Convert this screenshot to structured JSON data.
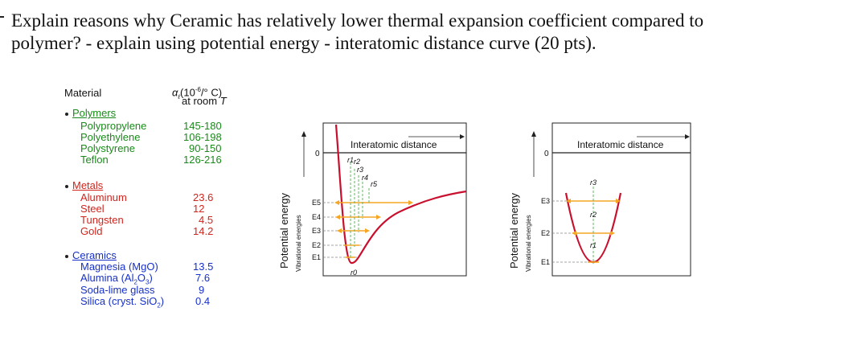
{
  "question": {
    "line1": "Explain reasons why Ceramic has relatively lower thermal expansion coefficient compared to",
    "line2": "polymer? - explain using potential energy - interatomic distance curve (20 pts)."
  },
  "table": {
    "col_material": "Material",
    "col_alpha_line1": "α  (10  /° C)",
    "col_alpha_line2": "at room T",
    "groups": [
      {
        "name": "Polymers",
        "color": "#1a8a1a",
        "items": [
          {
            "name": "Polypropylene",
            "value": "145-180"
          },
          {
            "name": "Polyethylene",
            "value": "106-198"
          },
          {
            "name": "Polystyrene",
            "value": "90-150"
          },
          {
            "name": "Teflon",
            "value": "126-216"
          }
        ]
      },
      {
        "name": "Metals",
        "color": "#d0241c",
        "items": [
          {
            "name": "Aluminum",
            "value": "23.6"
          },
          {
            "name": "Steel",
            "value": "12"
          },
          {
            "name": "Tungsten",
            "value": "4.5"
          },
          {
            "name": "Gold",
            "value": "14.2"
          }
        ]
      },
      {
        "name": "Ceramics",
        "color": "#1730c8",
        "items": [
          {
            "name": "Magnesia (MgO)",
            "value": "13.5"
          },
          {
            "name": "Alumina (Al2O3)",
            "value": "7.6"
          },
          {
            "name": "Soda-lime glass",
            "value": "9"
          },
          {
            "name": "Silica (cryst. SiO2)",
            "value": "0.4"
          }
        ]
      }
    ]
  },
  "diagram_left": {
    "y_axis": "Potential energy",
    "y_sub": "Vibrational energies",
    "x_axis": "Interatomic distance",
    "zero": "0",
    "levels": [
      "E5",
      "E4",
      "E3",
      "E2",
      "E1"
    ],
    "r_labels": [
      "r1",
      "r2",
      "r3",
      "r4",
      "r5"
    ],
    "r0": "r0"
  },
  "diagram_right": {
    "y_axis": "Potential energy",
    "y_sub": "Vibrational energies",
    "x_axis": "Interatomic distance",
    "zero": "0",
    "levels": [
      "E3",
      "E2",
      "E1"
    ],
    "r_labels": [
      "r3",
      "r2",
      "r1"
    ]
  },
  "colors": {
    "curve": "#c8102e",
    "arrows": "#f5a623",
    "dashes": "#5cb85c"
  }
}
